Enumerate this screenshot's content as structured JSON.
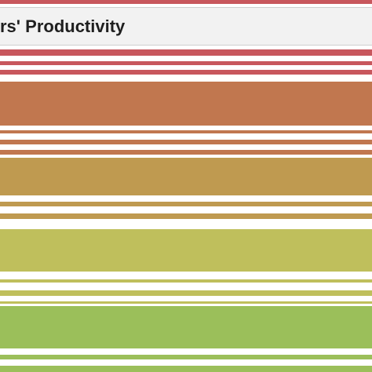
{
  "header": {
    "title": "rs' Productivity"
  },
  "palette": {
    "red": "#c8575d",
    "orange": "#c1774f",
    "tan": "#bf9a50",
    "olive": "#bfbf5c",
    "green": "#9bbf5a"
  }
}
